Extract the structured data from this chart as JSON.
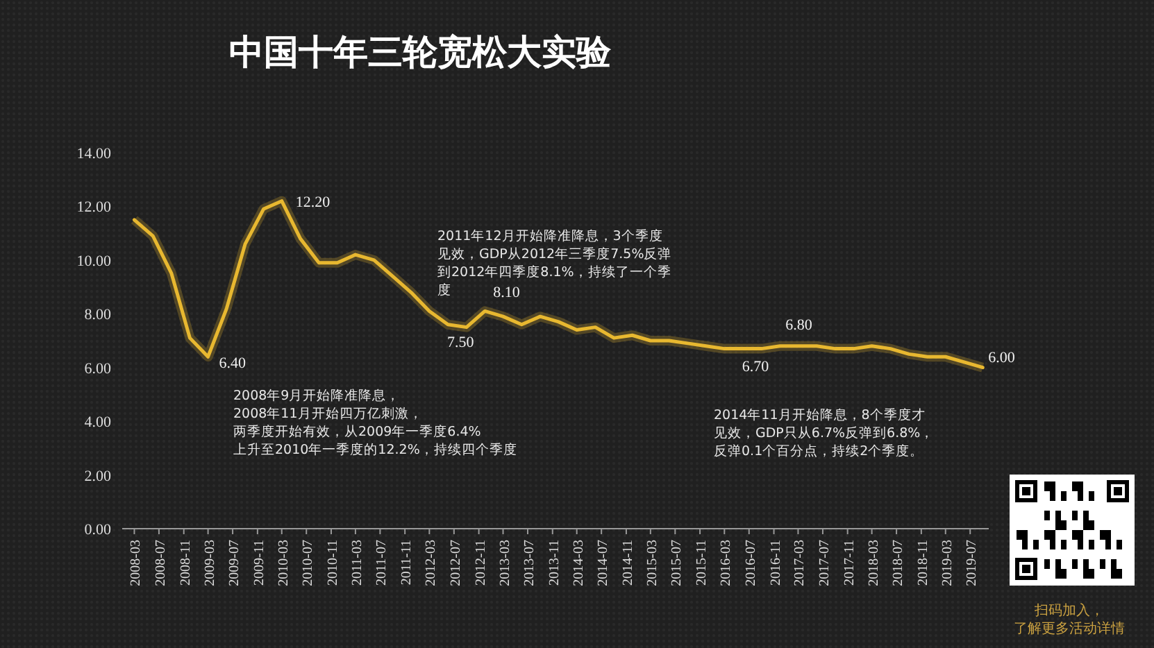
{
  "chart_data": {
    "type": "line",
    "title": "中国十年三轮宽松大实验",
    "x": [
      "2008-03",
      "2008-06",
      "2008-09",
      "2008-12",
      "2009-03",
      "2009-06",
      "2009-09",
      "2009-12",
      "2010-03",
      "2010-06",
      "2010-09",
      "2010-12",
      "2011-03",
      "2011-06",
      "2011-09",
      "2011-12",
      "2012-03",
      "2012-06",
      "2012-09",
      "2012-12",
      "2013-03",
      "2013-06",
      "2013-09",
      "2013-12",
      "2014-03",
      "2014-06",
      "2014-09",
      "2014-12",
      "2015-03",
      "2015-06",
      "2015-09",
      "2015-12",
      "2016-03",
      "2016-06",
      "2016-09",
      "2016-12",
      "2017-03",
      "2017-06",
      "2017-09",
      "2017-12",
      "2018-03",
      "2018-06",
      "2018-09",
      "2018-12",
      "2019-03",
      "2019-06",
      "2019-09"
    ],
    "series": [
      {
        "color": "#e8b830",
        "values": [
          11.5,
          10.9,
          9.5,
          7.1,
          6.4,
          8.2,
          10.6,
          11.9,
          12.2,
          10.8,
          9.9,
          9.9,
          10.2,
          10.0,
          9.4,
          8.8,
          8.1,
          7.6,
          7.5,
          8.1,
          7.9,
          7.6,
          7.9,
          7.7,
          7.4,
          7.5,
          7.1,
          7.2,
          7.0,
          7.0,
          6.9,
          6.8,
          6.7,
          6.7,
          6.7,
          6.8,
          6.8,
          6.8,
          6.7,
          6.7,
          6.8,
          6.7,
          6.5,
          6.4,
          6.4,
          6.2,
          6.0
        ]
      }
    ],
    "xlim": [
      "2008-01",
      "2019-10"
    ],
    "xticks": [
      "2008-03",
      "2008-07",
      "2008-11",
      "2009-03",
      "2009-07",
      "2009-11",
      "2010-03",
      "2010-07",
      "2010-11",
      "2011-03",
      "2011-07",
      "2011-11",
      "2012-03",
      "2012-07",
      "2012-11",
      "2013-03",
      "2013-07",
      "2013-11",
      "2014-03",
      "2014-07",
      "2014-11",
      "2015-03",
      "2015-07",
      "2015-11",
      "2016-03",
      "2016-07",
      "2016-11",
      "2017-03",
      "2017-07",
      "2017-11",
      "2018-03",
      "2018-07",
      "2018-11",
      "2019-03",
      "2019-07"
    ],
    "ylim": [
      0,
      14
    ],
    "yticks": [
      {
        "value": 0,
        "label": "0.00"
      },
      {
        "value": 2,
        "label": "2.00"
      },
      {
        "value": 4,
        "label": "4.00"
      },
      {
        "value": 6,
        "label": "6.00"
      },
      {
        "value": 8,
        "label": "8.00"
      },
      {
        "value": 10,
        "label": "10.00"
      },
      {
        "value": 12,
        "label": "12.00"
      },
      {
        "value": 14,
        "label": "14.00"
      }
    ],
    "grid": false,
    "marker": "none",
    "line_style": "solid",
    "annotations": [
      {
        "text": "12.20",
        "x": "2010-03",
        "y": 12.2
      },
      {
        "text": "6.40",
        "x": "2009-03",
        "y": 6.4
      },
      {
        "text": "8.10",
        "x": "2012-12",
        "y": 8.1
      },
      {
        "text": "7.50",
        "x": "2012-09",
        "y": 7.5
      },
      {
        "text": "6.70",
        "x": "2016-09",
        "y": 6.7
      },
      {
        "text": "6.80",
        "x": "2016-12",
        "y": 6.8
      },
      {
        "text": "6.00",
        "x": "2019-09",
        "y": 6.0
      },
      "2008年9月开始降准降息，2008年11月开始四万亿刺激，两季度开始有效，从2009年一季度6.4%上升至2010年一季度的12.2%，持续四个季度",
      "2011年12月开始降准降息，3个季度见效，GDP从2012年三季度7.5%反弹到2012年四季度8.1%，持续了一个季度",
      "2014年11月开始降息，8个季度才见效，GDP只从6.7%反弹到6.8%，反弹0.1个百分点，持续2个季度。",
      "扫码加入，了解更多活动详情"
    ]
  }
}
